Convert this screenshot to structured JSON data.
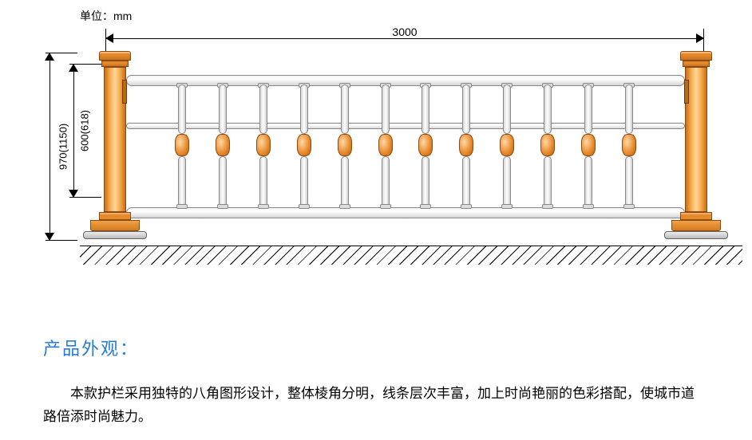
{
  "unit_label": "单位：mm",
  "dimensions": {
    "width_top": "3000",
    "height_outer": "970(1150)",
    "height_inner": "600(618)"
  },
  "fence": {
    "baluster_count": 12,
    "colors": {
      "post_main": "#e8892a",
      "post_dark": "#c86f18",
      "post_border": "#8a4a10",
      "knuckle": "#e8892a",
      "rail_light": "#ffffff",
      "rail_dark": "#d6d6d6",
      "rail_border": "#888888",
      "ground_line": "#000000",
      "background": "#ffffff"
    }
  },
  "text": {
    "heading": "产品外观：",
    "body": "本款护栏采用独特的八角图形设计，整体棱角分明，线条层次丰富，加上时尚艳丽的色彩搭配，使城市道路倍添时尚魅力。",
    "heading_color": "#2a7bd6",
    "body_color": "#000000",
    "heading_fontsize": 22,
    "body_fontsize": 17
  }
}
